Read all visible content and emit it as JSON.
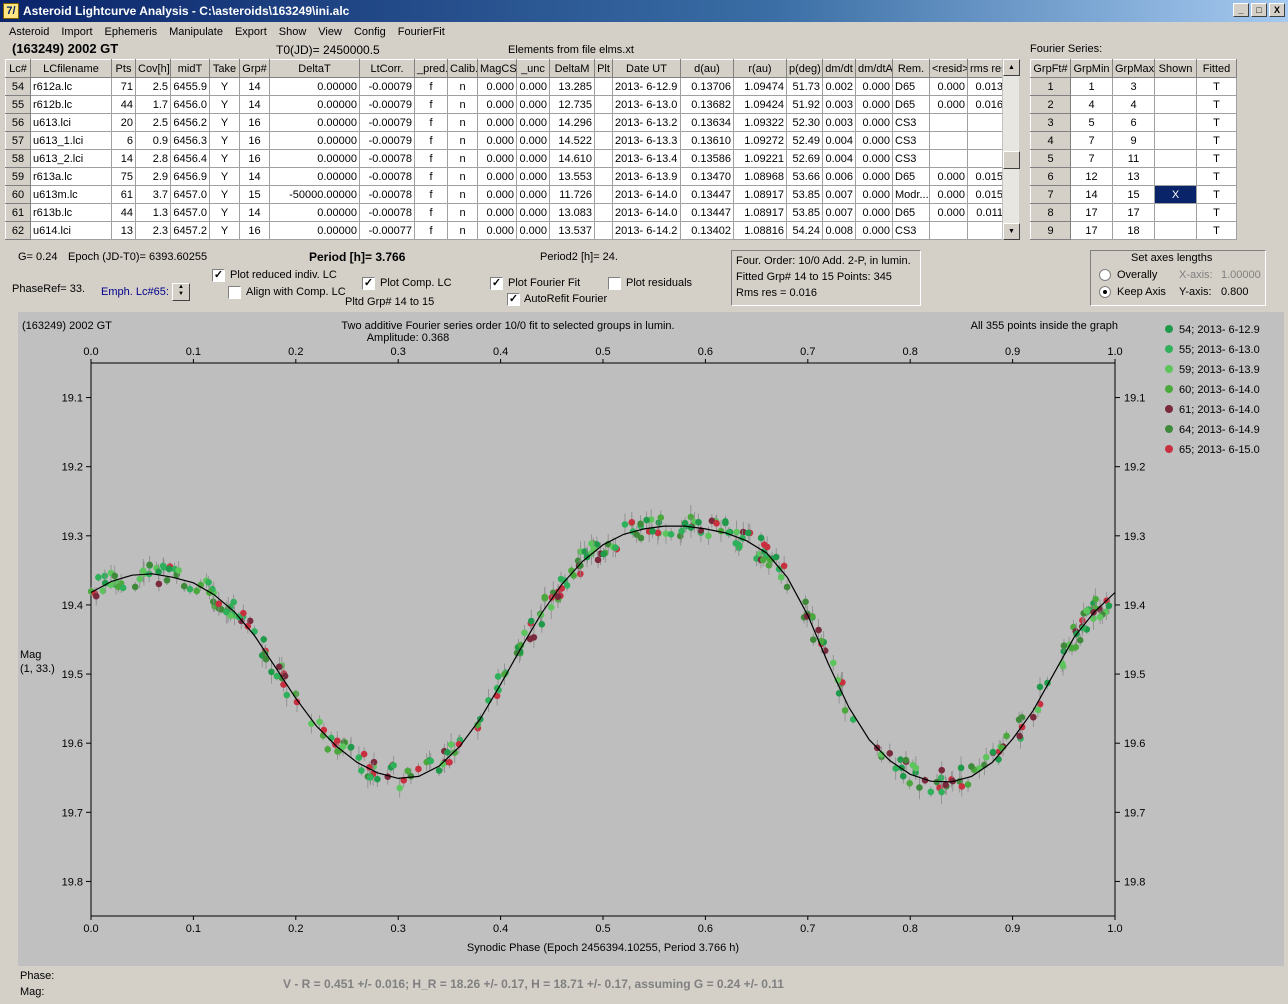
{
  "window": {
    "title": "Asteroid Lightcurve Analysis - C:\\asteroids\\163249\\ini.alc",
    "icon": "7/",
    "btn_min": "_",
    "btn_max": "□",
    "btn_close": "X"
  },
  "menu": [
    "Asteroid",
    "Import",
    "Ephemeris",
    "Manipulate",
    "Export",
    "Show",
    "View",
    "Config",
    "FourierFit"
  ],
  "header": {
    "object": "(163249) 2002 GT",
    "t0": "T0(JD)= 2450000.5",
    "elements": "Elements from file elms.xt",
    "fourier_label": "Fourier Series:"
  },
  "lc_table": {
    "columns": [
      "Lc#",
      "LCfilename",
      "Pts",
      "Cov[h]",
      "midT",
      "Take",
      "Grp#",
      "DeltaT",
      "LtCorr.",
      "_pred.",
      "Calib.",
      "MagCS",
      "_unc",
      "DeltaM",
      "Plt",
      "Date UT",
      "d(au)",
      "r(au)",
      "p(deg)",
      "dm/dt",
      "dm/dtA",
      "Rem.",
      "<resid>",
      "rms res"
    ],
    "rows": [
      [
        "54",
        "r612a.lc",
        "71",
        "2.5",
        "6455.9",
        "Y",
        "14",
        "0.00000",
        "-0.00079",
        "f",
        "n",
        "0.000",
        "0.000",
        "13.285",
        "",
        "2013- 6-12.9",
        "0.13706",
        "1.09474",
        "51.73",
        "0.002",
        "0.000",
        "D65",
        "0.000",
        "0.013"
      ],
      [
        "55",
        "r612b.lc",
        "44",
        "1.7",
        "6456.0",
        "Y",
        "14",
        "0.00000",
        "-0.00079",
        "f",
        "n",
        "0.000",
        "0.000",
        "12.735",
        "",
        "2013- 6-13.0",
        "0.13682",
        "1.09424",
        "51.92",
        "0.003",
        "0.000",
        "D65",
        "0.000",
        "0.016"
      ],
      [
        "56",
        "u613.lci",
        "20",
        "2.5",
        "6456.2",
        "Y",
        "16",
        "0.00000",
        "-0.00079",
        "f",
        "n",
        "0.000",
        "0.000",
        "14.296",
        "",
        "2013- 6-13.2",
        "0.13634",
        "1.09322",
        "52.30",
        "0.003",
        "0.000",
        "CS3",
        "",
        ""
      ],
      [
        "57",
        "u613_1.lci",
        "6",
        "0.9",
        "6456.3",
        "Y",
        "16",
        "0.00000",
        "-0.00079",
        "f",
        "n",
        "0.000",
        "0.000",
        "14.522",
        "",
        "2013- 6-13.3",
        "0.13610",
        "1.09272",
        "52.49",
        "0.004",
        "0.000",
        "CS3",
        "",
        ""
      ],
      [
        "58",
        "u613_2.lci",
        "14",
        "2.8",
        "6456.4",
        "Y",
        "16",
        "0.00000",
        "-0.00078",
        "f",
        "n",
        "0.000",
        "0.000",
        "14.610",
        "",
        "2013- 6-13.4",
        "0.13586",
        "1.09221",
        "52.69",
        "0.004",
        "0.000",
        "CS3",
        "",
        ""
      ],
      [
        "59",
        "r613a.lc",
        "75",
        "2.9",
        "6456.9",
        "Y",
        "14",
        "0.00000",
        "-0.00078",
        "f",
        "n",
        "0.000",
        "0.000",
        "13.553",
        "",
        "2013- 6-13.9",
        "0.13470",
        "1.08968",
        "53.66",
        "0.006",
        "0.000",
        "D65",
        "0.000",
        "0.015"
      ],
      [
        "60",
        "u613m.lc",
        "61",
        "3.7",
        "6457.0",
        "Y",
        "15",
        "-50000.00000",
        "-0.00078",
        "f",
        "n",
        "0.000",
        "0.000",
        "11.726",
        "",
        "2013- 6-14.0",
        "0.13447",
        "1.08917",
        "53.85",
        "0.007",
        "0.000",
        "Modr...",
        "0.000",
        "0.015"
      ],
      [
        "61",
        "r613b.lc",
        "44",
        "1.3",
        "6457.0",
        "Y",
        "14",
        "0.00000",
        "-0.00078",
        "f",
        "n",
        "0.000",
        "0.000",
        "13.083",
        "",
        "2013- 6-14.0",
        "0.13447",
        "1.08917",
        "53.85",
        "0.007",
        "0.000",
        "D65",
        "0.000",
        "0.011"
      ],
      [
        "62",
        "u614.lci",
        "13",
        "2.3",
        "6457.2",
        "Y",
        "16",
        "0.00000",
        "-0.00077",
        "f",
        "n",
        "0.000",
        "0.000",
        "13.537",
        "",
        "2013- 6-14.2",
        "0.13402",
        "1.08816",
        "54.24",
        "0.008",
        "0.000",
        "CS3",
        "",
        ""
      ]
    ]
  },
  "fourier_table": {
    "columns": [
      "GrpFt#",
      "GrpMin",
      "GrpMax",
      "Shown",
      "Fitted"
    ],
    "rows": [
      [
        "1",
        "1",
        "3",
        "",
        "T"
      ],
      [
        "2",
        "4",
        "4",
        "",
        "T"
      ],
      [
        "3",
        "5",
        "6",
        "",
        "T"
      ],
      [
        "4",
        "7",
        "9",
        "",
        "T"
      ],
      [
        "5",
        "7",
        "11",
        "",
        "T"
      ],
      [
        "6",
        "12",
        "13",
        "",
        "T"
      ],
      [
        "7",
        "14",
        "15",
        "X",
        "T"
      ],
      [
        "8",
        "17",
        "17",
        "",
        "T"
      ],
      [
        "9",
        "17",
        "18",
        "",
        "T"
      ]
    ]
  },
  "controls": {
    "g": "G= 0.24",
    "epoch": "Epoch (JD-T0)= 6393.60255",
    "period": "Period [h]= 3.766",
    "period2": "Period2 [h]= 24.",
    "phaseref": "PhaseRef= 33.",
    "emph": "Emph. Lc#65:",
    "cb_plot_reduced": "Plot reduced indiv. LC",
    "cb_align": "Align with Comp. LC",
    "cb_plot_comp": "Plot Comp. LC",
    "pltd_grp": "Pltd Grp#  14 to   15",
    "cb_plot_fourier": "Plot Fourier Fit",
    "cb_autorefit": "AutoRefit Fourier",
    "cb_plot_residuals": "Plot residuals",
    "fourier_info": [
      "Four. Order: 10/0     Add. 2-P, in lumin.",
      "Fitted Grp# 14 to 15 Points: 345",
      "Rms res     = 0.016"
    ],
    "axes_title": "Set axes lengths",
    "radio_overall": "Overally",
    "radio_keep": "Keep Axis",
    "xaxis_label": "X-axis:",
    "xaxis_val": "1.00000",
    "yaxis_label": "Y-axis:",
    "yaxis_val": "0.800",
    "checked": "✓"
  },
  "chart_data": {
    "type": "scatter",
    "title_left": "(163249) 2002 GT",
    "title": "Two additive Fourier series order 10/0 fit to selected groups in lumin.",
    "subtitle": "Amplitude: 0.368",
    "note_right": "All 355 points inside the graph",
    "xlabel": "Synodic Phase (Epoch 2456394.10255, Period 3.766 h)",
    "ylabel": [
      "Mag",
      "(1, 33.)"
    ],
    "xlim": [
      0,
      1
    ],
    "ylim": [
      19.05,
      19.85
    ],
    "y_inverted": true,
    "xticks": [
      "0.0",
      "0.1",
      "0.2",
      "0.3",
      "0.4",
      "0.5",
      "0.6",
      "0.7",
      "0.8",
      "0.9",
      "1.0"
    ],
    "yticks": [
      "19.1",
      "19.2",
      "19.3",
      "19.4",
      "19.5",
      "19.6",
      "19.7",
      "19.8"
    ],
    "fit_curve": {
      "x": [
        0.0,
        0.02,
        0.04,
        0.06,
        0.08,
        0.1,
        0.12,
        0.14,
        0.16,
        0.18,
        0.2,
        0.22,
        0.24,
        0.26,
        0.28,
        0.3,
        0.32,
        0.34,
        0.36,
        0.38,
        0.4,
        0.42,
        0.44,
        0.46,
        0.48,
        0.5,
        0.52,
        0.54,
        0.56,
        0.58,
        0.6,
        0.62,
        0.64,
        0.66,
        0.68,
        0.7,
        0.72,
        0.74,
        0.76,
        0.78,
        0.8,
        0.82,
        0.84,
        0.86,
        0.88,
        0.9,
        0.92,
        0.94,
        0.96,
        0.98,
        1.0
      ],
      "y": [
        19.382,
        19.366,
        19.357,
        19.355,
        19.36,
        19.368,
        19.385,
        19.41,
        19.445,
        19.49,
        19.535,
        19.575,
        19.605,
        19.628,
        19.643,
        19.651,
        19.648,
        19.633,
        19.605,
        19.565,
        19.515,
        19.462,
        19.412,
        19.37,
        19.337,
        19.313,
        19.298,
        19.29,
        19.286,
        19.286,
        19.29,
        19.296,
        19.307,
        19.325,
        19.36,
        19.415,
        19.485,
        19.548,
        19.595,
        19.625,
        19.645,
        19.655,
        19.656,
        19.648,
        19.628,
        19.594,
        19.553,
        19.5,
        19.447,
        19.41,
        19.382
      ]
    },
    "series": [
      {
        "name": "54; 2013- 6-12.9",
        "color": "#1f9a4a"
      },
      {
        "name": "55; 2013- 6-13.0",
        "color": "#2fb05a"
      },
      {
        "name": "59; 2013- 6-13.9",
        "color": "#5cc55c"
      },
      {
        "name": "60; 2013- 6-14.0",
        "color": "#4aa83c"
      },
      {
        "name": "61; 2013- 6-14.0",
        "color": "#7a2a3c"
      },
      {
        "name": "64; 2013- 6-14.9",
        "color": "#3f8a3a"
      },
      {
        "name": "65; 2013- 6-15.0",
        "color": "#c83040"
      }
    ]
  },
  "footer": {
    "phase": "Phase:",
    "mag": "Mag:",
    "result": "V - R = 0.451 +/- 0.016; H_R = 18.26 +/- 0.17, H = 18.71 +/- 0.17, assuming G = 0.24 +/- 0.11"
  }
}
